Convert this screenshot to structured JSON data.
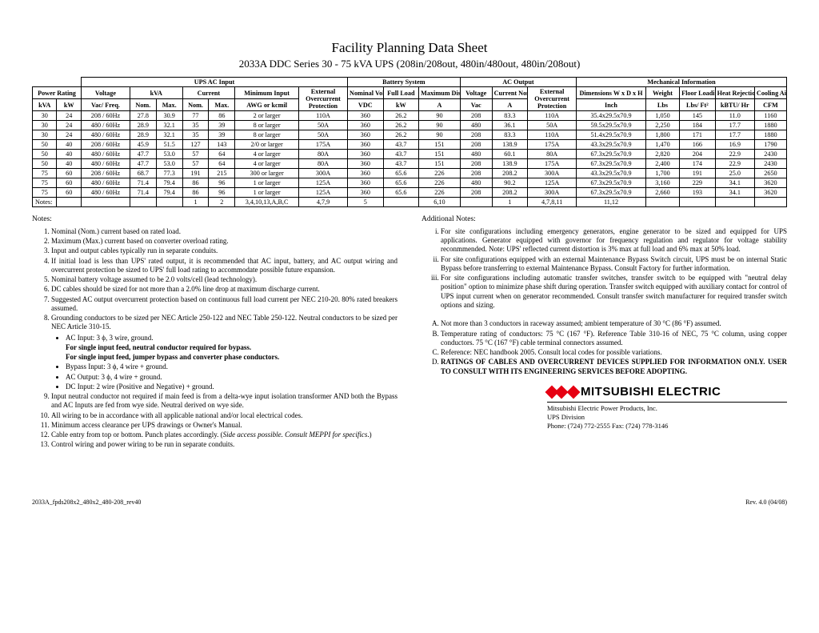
{
  "title": "Facility Planning Data Sheet",
  "subtitle": "2033A DDC Series 30 - 75 kVA UPS (208in/208out, 480in/480out, 480in/208out)",
  "group_headers": [
    "UPS AC Input",
    "Battery System",
    "AC Output",
    "Mechanical Information"
  ],
  "col_headers_r1": [
    "Power Rating",
    "Voltage",
    "kVA",
    "Current",
    "Minimum Input",
    "External Overcurrent Protection",
    "Nominal Voltage",
    "Full Load",
    "Maximum Discharge",
    "Voltage",
    "Current Nominal",
    "External Overcurrent Protection",
    "Dimensions W x D x H",
    "Weight",
    "Floor Loading",
    "Heat Rejection",
    "Cooling Air"
  ],
  "col_headers_r2": [
    "kVA",
    "kW",
    "Vac/ Freq.",
    "Nom.",
    "Max.",
    "Nom.",
    "Max.",
    "AWG or kcmil",
    "",
    "VDC",
    "kW",
    "A",
    "Vac",
    "A",
    "",
    "Inch",
    "Lbs",
    "Lbs/ Ft²",
    "kBTU/ Hr",
    "CFM"
  ],
  "rows": [
    [
      "30",
      "24",
      "208 / 60Hz",
      "27.8",
      "30.9",
      "77",
      "86",
      "2 or larger",
      "110A",
      "360",
      "26.2",
      "90",
      "208",
      "83.3",
      "110A",
      "35.4x29.5x70.9",
      "1,050",
      "145",
      "11.0",
      "1160"
    ],
    [
      "30",
      "24",
      "480 / 60Hz",
      "28.9",
      "32.1",
      "35",
      "39",
      "8 or larger",
      "50A",
      "360",
      "26.2",
      "90",
      "480",
      "36.1",
      "50A",
      "59.5x29.5x70.9",
      "2,250",
      "184",
      "17.7",
      "1880"
    ],
    [
      "30",
      "24",
      "480 / 60Hz",
      "28.9",
      "32.1",
      "35",
      "39",
      "8 or larger",
      "50A",
      "360",
      "26.2",
      "90",
      "208",
      "83.3",
      "110A",
      "51.4x29.5x70.9",
      "1,800",
      "171",
      "17.7",
      "1880"
    ],
    [
      "50",
      "40",
      "208 / 60Hz",
      "45.9",
      "51.5",
      "127",
      "143",
      "2/0 or larger",
      "175A",
      "360",
      "43.7",
      "151",
      "208",
      "138.9",
      "175A",
      "43.3x29.5x70.9",
      "1,470",
      "166",
      "16.9",
      "1790"
    ],
    [
      "50",
      "40",
      "480 / 60Hz",
      "47.7",
      "53.0",
      "57",
      "64",
      "4 or larger",
      "80A",
      "360",
      "43.7",
      "151",
      "480",
      "60.1",
      "80A",
      "67.3x29.5x70.9",
      "2,820",
      "204",
      "22.9",
      "2430"
    ],
    [
      "50",
      "40",
      "480 / 60Hz",
      "47.7",
      "53.0",
      "57",
      "64",
      "4 or larger",
      "80A",
      "360",
      "43.7",
      "151",
      "208",
      "138.9",
      "175A",
      "67.3x29.5x70.9",
      "2,400",
      "174",
      "22.9",
      "2430"
    ],
    [
      "75",
      "60",
      "208 / 60Hz",
      "68.7",
      "77.3",
      "191",
      "215",
      "300 or larger",
      "300A",
      "360",
      "65.6",
      "226",
      "208",
      "208.2",
      "300A",
      "43.3x29.5x70.9",
      "1,700",
      "191",
      "25.0",
      "2650"
    ],
    [
      "75",
      "60",
      "480 / 60Hz",
      "71.4",
      "79.4",
      "86",
      "96",
      "1 or larger",
      "125A",
      "360",
      "65.6",
      "226",
      "480",
      "90.2",
      "125A",
      "67.3x29.5x70.9",
      "3,160",
      "229",
      "34.1",
      "3620"
    ],
    [
      "75",
      "60",
      "480 / 60Hz",
      "71.4",
      "79.4",
      "86",
      "96",
      "1 or larger",
      "125A",
      "360",
      "65.6",
      "226",
      "208",
      "208.2",
      "300A",
      "67.3x29.5x70.9",
      "2,660",
      "193",
      "34.1",
      "3620"
    ]
  ],
  "notes_row": [
    "Notes:",
    "",
    "",
    "",
    "",
    "1",
    "2",
    "3,4,10,13,A,B,C",
    "4,7,9",
    "5",
    "",
    "6,10",
    "",
    "1",
    "4,7,8,11",
    "11,12",
    "",
    "",
    "",
    ""
  ],
  "notes_left_title": "Notes:",
  "notes_left": [
    "Nominal (Nom.) current based on rated load.",
    "Maximum (Max.) current based on converter overload rating.",
    "Input and output cables typically run in separate conduits.",
    "If initial load is less than UPS' rated output, it is recommended that AC input, battery, and AC output wiring and overcurrent protection be sized to UPS' full load rating to accommodate possible future expansion.",
    "Nominal battery voltage assumed to be 2.0 volts/cell (lead technology).",
    "DC cables should be sized for not more than a 2.0% line drop at maximum discharge current.",
    "Suggested AC output overcurrent protection based on continuous full load current per NEC 210-20. 80% rated breakers assumed.",
    "Grounding conductors to be sized per NEC Article 250-122 and NEC Table 250-122. Neutral conductors to be sized per NEC Article 310-15."
  ],
  "sub_bullets": [
    {
      "lead": "AC Input:",
      "text": "3 ϕ, 3 wire, ground."
    },
    {
      "lead": "",
      "text": "For single input feed, neutral conductor  required for bypass.",
      "bold": true
    },
    {
      "lead": "",
      "text": "For single input feed, jumper bypass and converter phase conductors.",
      "bold": true
    },
    {
      "lead": "Bypass Input:",
      "text": "3 ϕ, 4 wire + ground."
    },
    {
      "lead": "AC Output:",
      "text": "3 ϕ, 4 wire + ground."
    },
    {
      "lead": "DC Input:",
      "text": "2 wire (Positive and Negative) + ground."
    }
  ],
  "notes_left_cont": [
    "Input neutral conductor not required if main feed is from a delta-wye input isolation transformer AND both the Bypass and AC Inputs are fed from wye side. Neutral derived on wye side.",
    "All wiring to be in accordance with all applicable national and/or local electrical codes.",
    "Minimum access clearance per UPS drawings or Owner's Manual.",
    "Cable entry from top or bottom. Punch plates accordingly. (Side access possible. Consult MEPPI for specifics.)",
    "Control wiring and power wiring to be run in separate conduits."
  ],
  "notes_right_title": "Additional Notes:",
  "notes_right_roman": [
    "For site configurations including emergency generators, engine generator to be sized and equipped for UPS applications. Generator equipped with governor for frequency regulation and regulator for voltage stability reconmmended. Note: UPS' reflected current distortion is 3% max at full load and 6% max at 50% load.",
    "For site configurations equipped with an external Maintenance Bypass Switch circuit, UPS must be on internal Static Bypass before transferring to external Maintenance Bypass. Consult Factory for further information.",
    "For site configurations including automatic transfer switches, transfer switch to be equipped with \"neutral delay position\" option to minimize phase shift during operation. Transfer switch equipped with auxiliary contact for control of UPS input current when on generator recommended. Consult transfer switch manufacturer for required transfer switch options and sizing."
  ],
  "notes_right_alpha": [
    "Not more than 3 conductors in raceway assumed; ambient temperature of 30 °C (86 °F) assumed.",
    "Temperature rating of conductors: 75 °C (167 °F). Reference Table 310-16 of NEC, 75 °C column, using copper conductors. 75 °C (167 °F) cable terminal connectors assumed.",
    "Reference: NEC handbook 2005. Consult local codes for possible variations."
  ],
  "bold_note": "RATINGS OF CABLES AND OVERCURRENT DEVICES SUPPLIED FOR INFORMATION ONLY. USER TO CONSULT WITH ITS ENGINEERING SERVICES BEFORE ADOPTING.",
  "brand": "MITSUBISHI ELECTRIC",
  "company_lines": [
    "Mitsubishi Electric Power Products, Inc.",
    "UPS Division",
    "Phone: (724) 772-2555   Fax: (724) 778-3146"
  ],
  "footer_left": "2033A_fpds208x2_480x2_480-208_rev40",
  "footer_right": "Rev. 4.0 (04/08)",
  "colors": {
    "red": "#e60012"
  }
}
